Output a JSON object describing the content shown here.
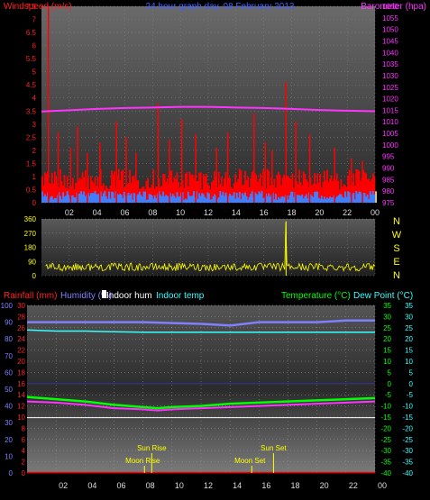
{
  "chart_data": [
    {
      "type": "line",
      "title": "24 hour graph day, 08 February 2013",
      "ylabel": "Windspeed (m/s)",
      "ylabel_right": "Barometer (hpa)",
      "ylim": [
        0,
        7.5
      ],
      "ylim_right": [
        975,
        1060
      ],
      "yticks": [
        "0",
        "0.5",
        "1",
        "1.5",
        "2",
        "2.5",
        "3",
        "3.5",
        "4",
        "4.5",
        "5",
        "5.5",
        "6",
        "6.5",
        "7",
        "7.5"
      ],
      "yticks_right": [
        "975",
        "980",
        "985",
        "990",
        "995",
        "1000",
        "1005",
        "1010",
        "1015",
        "1020",
        "1025",
        "1030",
        "1035",
        "1040",
        "1045",
        "1050",
        "1055",
        "1060"
      ],
      "xticks": [
        "02",
        "04",
        "06",
        "08",
        "10",
        "12",
        "14",
        "16",
        "18",
        "20",
        "22",
        "00"
      ],
      "xlim": [
        0,
        24
      ],
      "colors": {
        "gust": "#ff0000",
        "average": "#3f7fff",
        "barometer": "#ff33ff",
        "background": "#ffff99"
      },
      "series": [
        {
          "name": "Barometer",
          "axis": "right",
          "x": [
            0,
            2,
            4,
            6,
            8,
            10,
            12,
            14,
            16,
            18,
            20,
            22,
            24
          ],
          "values": [
            1014.5,
            1015,
            1015.6,
            1016,
            1016.2,
            1016.5,
            1016.5,
            1016.2,
            1016,
            1015.6,
            1015.1,
            1014.8,
            1014.6
          ]
        },
        {
          "name": "Gust spikes",
          "axis": "left",
          "x": [
            0.5,
            1.2,
            2.1,
            2.6,
            3.3,
            4.2,
            5.4,
            6.1,
            6.8,
            8.4,
            9.2,
            10.1,
            11.1,
            12.6,
            13.4,
            15.3,
            16.1,
            16.6,
            17.6,
            18.3,
            19.3,
            21.1,
            22.3,
            23.1
          ],
          "values": [
            7.5,
            2.7,
            2.1,
            2.9,
            1.9,
            2.3,
            3.1,
            2.5,
            1.9,
            3.8,
            2.4,
            3.2,
            2.6,
            2.1,
            2.7,
            3.4,
            2.3,
            2.0,
            4.6,
            3.1,
            2.6,
            2.1,
            1.7,
            1.6
          ]
        }
      ]
    },
    {
      "type": "line",
      "ylim": [
        0,
        360
      ],
      "yticks": [
        "0",
        "90",
        "180",
        "270",
        "360"
      ],
      "compass": [
        "N",
        "W",
        "S",
        "E",
        "N"
      ],
      "xlim": [
        0,
        24
      ],
      "colors": {
        "direction": "#ffff00"
      }
    },
    {
      "type": "line",
      "labels": [
        "Rainfall (mm)",
        "Humidity (%)",
        "Indoor hum",
        "Indoor temp",
        "Temperature (°C)",
        "Dew Point (°C)"
      ],
      "ylim_rain": [
        0,
        30
      ],
      "ylim_hum": [
        0,
        100
      ],
      "ylim_temp": [
        -40,
        35
      ],
      "yticks_rain": [
        "0",
        "2",
        "4",
        "6",
        "8",
        "10",
        "12",
        "14",
        "16",
        "18",
        "20",
        "22",
        "24",
        "26",
        "28",
        "30"
      ],
      "yticks_hum": [
        "0",
        "10",
        "20",
        "30",
        "40",
        "50",
        "60",
        "70",
        "80",
        "90",
        "100"
      ],
      "yticks_temp": [
        "-40",
        "-35",
        "-30",
        "-25",
        "-20",
        "-15",
        "-10",
        "-5",
        "0",
        "5",
        "10",
        "15",
        "20",
        "25",
        "30",
        "35"
      ],
      "xticks": [
        "02",
        "04",
        "06",
        "08",
        "10",
        "12",
        "14",
        "16",
        "18",
        "20",
        "22",
        "00"
      ],
      "xlim": [
        0,
        24
      ],
      "colors": {
        "rain": "#ff0000",
        "humidity": "#8080ff",
        "indoor_hum": "#ffffff",
        "indoor_temp": "#33ffff",
        "temperature": "#00ff00",
        "dewpoint": "#ff33ff",
        "sun": "#ffff00"
      },
      "series": [
        {
          "name": "Humidity",
          "axis": "hum",
          "x": [
            0,
            4,
            8,
            12,
            14,
            16,
            18,
            20,
            22,
            24
          ],
          "values": [
            90,
            90,
            90,
            89,
            88,
            90,
            90,
            90,
            91,
            91
          ]
        },
        {
          "name": "Indoor temp",
          "axis": "temp",
          "x": [
            0,
            2,
            4,
            6,
            8,
            10,
            12,
            14,
            16,
            18,
            20,
            22,
            24
          ],
          "values": [
            24,
            23.5,
            23.5,
            23.2,
            23,
            23,
            23,
            23,
            23,
            23,
            23,
            23,
            23
          ]
        },
        {
          "name": "Temperature",
          "axis": "temp",
          "x": [
            0,
            2,
            4,
            6,
            8,
            9,
            10,
            12,
            14,
            16,
            18,
            20,
            22,
            24
          ],
          "values": [
            -6,
            -7,
            -8,
            -9.5,
            -10.5,
            -11,
            -10.5,
            -10,
            -9,
            -8.5,
            -8,
            -7.5,
            -7,
            -6.5
          ]
        },
        {
          "name": "Dew Point",
          "axis": "temp",
          "x": [
            0,
            2,
            4,
            6,
            8,
            9,
            10,
            12,
            14,
            16,
            18,
            20,
            22,
            24
          ],
          "values": [
            -8,
            -8.5,
            -9.5,
            -11,
            -11.5,
            -12,
            -11.5,
            -11,
            -10.5,
            -10,
            -9.5,
            -9,
            -8.5,
            -8
          ]
        },
        {
          "name": "Indoor hum",
          "axis": "hum",
          "x": [
            0,
            24
          ],
          "values": [
            33,
            33
          ]
        }
      ],
      "events": [
        {
          "label": "Moon Rise",
          "hour": 8.1
        },
        {
          "label": "Sun Rise",
          "hour": 8.6
        },
        {
          "label": "Moon Set",
          "hour": 15.5
        },
        {
          "label": "Sun Set",
          "hour": 17.0
        }
      ]
    }
  ]
}
